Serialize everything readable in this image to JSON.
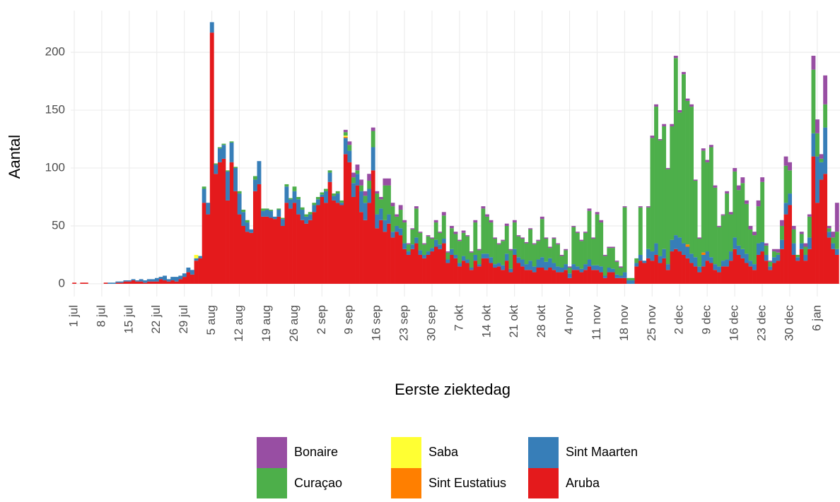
{
  "chart_data": {
    "type": "stacked_bar",
    "x_label": "Eerste ziektedag",
    "y_label": "Aantal",
    "ylim": [
      -11,
      236
    ],
    "yticks": [
      0,
      50,
      100,
      150,
      200
    ],
    "grid": true,
    "legend_position": "bottom",
    "categories": [
      "1 jul",
      null,
      null,
      null,
      null,
      null,
      null,
      "8 jul",
      null,
      null,
      null,
      null,
      null,
      null,
      "15 jul",
      null,
      null,
      null,
      null,
      null,
      null,
      "22 jul",
      null,
      null,
      null,
      null,
      null,
      null,
      "29 jul",
      null,
      null,
      null,
      null,
      null,
      null,
      "5 aug",
      null,
      null,
      null,
      null,
      null,
      null,
      "12 aug",
      null,
      null,
      null,
      null,
      null,
      null,
      "19 aug",
      null,
      null,
      null,
      null,
      null,
      null,
      "26 aug",
      null,
      null,
      null,
      null,
      null,
      null,
      "2 sep",
      null,
      null,
      null,
      null,
      null,
      null,
      "9 sep",
      null,
      null,
      null,
      null,
      null,
      null,
      "16 sep",
      null,
      null,
      null,
      null,
      null,
      null,
      "23 sep",
      null,
      null,
      null,
      null,
      null,
      null,
      "30 sep",
      null,
      null,
      null,
      null,
      null,
      null,
      "7 okt",
      null,
      null,
      null,
      null,
      null,
      null,
      "14 okt",
      null,
      null,
      null,
      null,
      null,
      null,
      "21 okt",
      null,
      null,
      null,
      null,
      null,
      null,
      "28 okt",
      null,
      null,
      null,
      null,
      null,
      null,
      "4 nov",
      null,
      null,
      null,
      null,
      null,
      null,
      "11 nov",
      null,
      null,
      null,
      null,
      null,
      null,
      "18 nov",
      null,
      null,
      null,
      null,
      null,
      null,
      "25 nov",
      null,
      null,
      null,
      null,
      null,
      null,
      "2 dec",
      null,
      null,
      null,
      null,
      null,
      null,
      "9 dec",
      null,
      null,
      null,
      null,
      null,
      null,
      "16 dec",
      null,
      null,
      null,
      null,
      null,
      null,
      "23 dec",
      null,
      null,
      null,
      null,
      null,
      null,
      "30 dec",
      null,
      null,
      null,
      null,
      null,
      null,
      "6 jan",
      null,
      null,
      null,
      null,
      null
    ],
    "series": [
      {
        "name": "Bonaire",
        "color": "#984EA3",
        "values": [
          0,
          0,
          0,
          0,
          0,
          0,
          0,
          0,
          0,
          0,
          0,
          0,
          0,
          0,
          0,
          0,
          0,
          0,
          0,
          0,
          0,
          0,
          0,
          0,
          0,
          0,
          0,
          0,
          0,
          0,
          0,
          0,
          0,
          0,
          0,
          0,
          0,
          0,
          0,
          0,
          0,
          0,
          0,
          0,
          0,
          0,
          0,
          0,
          0,
          0,
          0,
          0,
          0,
          0,
          0,
          0,
          0,
          0,
          0,
          0,
          0,
          0,
          0,
          0,
          0,
          0,
          0,
          0,
          0,
          2,
          3,
          4,
          5,
          5,
          4,
          6,
          3,
          2,
          2,
          6,
          6,
          3,
          2,
          4,
          2,
          1,
          1,
          2,
          1,
          1,
          1,
          1,
          2,
          1,
          3,
          1,
          2,
          2,
          1,
          2,
          1,
          1,
          2,
          1,
          2,
          2,
          2,
          1,
          1,
          1,
          2,
          1,
          2,
          1,
          1,
          1,
          1,
          1,
          1,
          2,
          1,
          1,
          1,
          1,
          1,
          1,
          1,
          1,
          1,
          1,
          1,
          2,
          1,
          2,
          2,
          1,
          1,
          1,
          1,
          1,
          1,
          0,
          0,
          0,
          1,
          0,
          1,
          2,
          2,
          1,
          2,
          1,
          2,
          2,
          2,
          2,
          2,
          2,
          1,
          1,
          2,
          2,
          2,
          2,
          1,
          1,
          2,
          2,
          3,
          4,
          5,
          3,
          3,
          3,
          5,
          4,
          2,
          1,
          2,
          3,
          5,
          8,
          7,
          3,
          0,
          2,
          3,
          2,
          12,
          12,
          4,
          25,
          2,
          5,
          25
        ]
      },
      {
        "name": "Curaçao",
        "color": "#4DAF4A",
        "values": [
          0,
          0,
          0,
          0,
          0,
          0,
          0,
          0,
          0,
          0,
          0,
          0,
          0,
          0,
          0,
          0,
          0,
          0,
          0,
          0,
          0,
          0,
          0,
          0,
          0,
          0,
          0,
          0,
          0,
          0,
          0,
          0,
          0,
          2,
          0,
          0,
          1,
          1,
          1,
          1,
          1,
          1,
          2,
          2,
          2,
          0,
          3,
          0,
          2,
          1,
          1,
          0,
          1,
          1,
          2,
          1,
          4,
          2,
          2,
          2,
          2,
          2,
          2,
          2,
          2,
          2,
          2,
          2,
          2,
          3,
          5,
          5,
          3,
          5,
          6,
          7,
          14,
          18,
          8,
          30,
          25,
          22,
          8,
          16,
          18,
          6,
          13,
          25,
          15,
          9,
          13,
          8,
          15,
          10,
          20,
          6,
          18,
          18,
          19,
          20,
          20,
          13,
          28,
          12,
          39,
          32,
          30,
          22,
          16,
          21,
          24,
          16,
          23,
          18,
          18,
          18,
          27,
          19,
          16,
          33,
          20,
          9,
          21,
          19,
          10,
          12,
          5,
          32,
          29,
          24,
          27,
          42,
          23,
          44,
          38,
          17,
          17,
          18,
          11,
          7,
          56,
          2,
          2,
          4,
          41,
          0,
          36,
          98,
          118,
          100,
          106,
          82,
          98,
          153,
          108,
          146,
          124,
          127,
          66,
          24,
          88,
          77,
          95,
          66,
          34,
          39,
          57,
          32,
          57,
          48,
          57,
          43,
          27,
          25,
          32,
          52,
          8,
          4,
          5,
          2,
          12,
          32,
          20,
          12,
          2,
          8,
          7,
          18,
          55,
          20,
          3,
          20,
          3,
          5,
          15
        ]
      },
      {
        "name": "Saba",
        "color": "#FFFF33",
        "values": [
          0,
          0,
          0,
          0,
          0,
          0,
          0,
          0,
          0,
          0,
          0,
          0,
          0,
          0,
          0,
          0,
          0,
          0,
          0,
          0,
          0,
          0,
          0,
          0,
          0,
          0,
          0,
          0,
          0,
          0,
          0,
          3,
          0,
          0,
          0,
          0,
          0,
          0,
          0,
          0,
          0,
          0,
          0,
          0,
          0,
          0,
          0,
          0,
          0,
          0,
          0,
          0,
          0,
          0,
          0,
          0,
          0,
          0,
          0,
          0,
          0,
          0,
          0,
          0,
          0,
          0,
          0,
          0,
          0,
          1,
          0,
          0,
          0,
          0,
          0,
          0,
          0,
          0,
          0,
          0,
          0,
          0,
          0,
          0,
          0,
          0,
          0,
          0,
          0,
          0,
          0,
          0,
          0,
          0,
          0,
          0,
          0,
          0,
          0,
          0,
          0,
          0,
          0,
          0,
          0,
          0,
          0,
          0,
          0,
          0,
          0,
          0,
          0,
          0,
          0,
          0,
          0,
          0,
          0,
          0,
          0,
          0,
          0,
          0,
          0,
          0,
          0,
          0,
          0,
          0,
          0,
          0,
          0,
          0,
          0,
          0,
          0,
          0,
          0,
          0,
          0,
          0,
          0,
          0,
          0,
          0,
          0,
          0,
          0,
          0,
          0,
          0,
          0,
          0,
          0,
          0,
          0,
          0,
          0,
          0,
          0,
          0,
          0,
          0,
          0,
          0,
          0,
          0,
          0,
          0,
          0,
          0,
          0,
          0,
          0,
          0,
          0,
          0,
          0,
          0,
          0,
          0,
          0,
          0,
          0,
          0,
          0,
          0,
          0,
          0,
          0,
          0,
          0,
          0,
          0
        ]
      },
      {
        "name": "Sint Eustatius",
        "color": "#FF7F00",
        "values": [
          0,
          0,
          0,
          0,
          0,
          0,
          0,
          0,
          0,
          0,
          0,
          0,
          0,
          0,
          0,
          0,
          0,
          0,
          0,
          0,
          0,
          0,
          0,
          0,
          0,
          0,
          0,
          0,
          0,
          0,
          0,
          0,
          0,
          0,
          0,
          0,
          0,
          0,
          0,
          0,
          0,
          0,
          0,
          0,
          0,
          0,
          0,
          0,
          0,
          0,
          0,
          0,
          0,
          0,
          0,
          0,
          0,
          0,
          0,
          0,
          0,
          0,
          0,
          0,
          0,
          0,
          0,
          0,
          0,
          1,
          0,
          0,
          0,
          0,
          0,
          0,
          0,
          0,
          0,
          0,
          0,
          0,
          0,
          0,
          0,
          0,
          0,
          0,
          0,
          0,
          0,
          0,
          0,
          0,
          0,
          0,
          0,
          0,
          0,
          0,
          0,
          0,
          0,
          0,
          0,
          0,
          0,
          0,
          0,
          0,
          0,
          0,
          0,
          0,
          0,
          0,
          0,
          0,
          0,
          0,
          0,
          0,
          0,
          0,
          0,
          0,
          0,
          0,
          0,
          0,
          0,
          0,
          0,
          0,
          0,
          0,
          0,
          0,
          0,
          0,
          0,
          0,
          0,
          0,
          0,
          0,
          0,
          0,
          0,
          0,
          0,
          0,
          0,
          0,
          0,
          0,
          2,
          0,
          0,
          0,
          2,
          0,
          0,
          0,
          0,
          0,
          0,
          0,
          0,
          0,
          0,
          0,
          0,
          0,
          0,
          0,
          0,
          0,
          0,
          0,
          0,
          0,
          0,
          0,
          0,
          0,
          0,
          0,
          0,
          0,
          0,
          0,
          0,
          0,
          0
        ]
      },
      {
        "name": "Sint Maarten",
        "color": "#377EB8",
        "values": [
          0,
          0,
          0,
          0,
          0,
          0,
          0,
          0,
          0,
          1,
          1,
          1,
          1,
          1,
          1,
          1,
          1,
          2,
          2,
          2,
          2,
          3,
          2,
          4,
          2,
          3,
          4,
          3,
          3,
          4,
          4,
          2,
          2,
          12,
          10,
          9,
          8,
          12,
          12,
          25,
          17,
          20,
          18,
          12,
          8,
          3,
          10,
          20,
          5,
          6,
          6,
          2,
          6,
          6,
          14,
          8,
          10,
          13,
          9,
          6,
          5,
          6,
          5,
          2,
          10,
          8,
          4,
          8,
          2,
          14,
          10,
          12,
          10,
          18,
          15,
          12,
          20,
          12,
          10,
          10,
          8,
          5,
          5,
          6,
          5,
          3,
          4,
          5,
          4,
          3,
          3,
          3,
          6,
          4,
          4,
          3,
          5,
          3,
          3,
          4,
          3,
          2,
          5,
          2,
          4,
          4,
          5,
          3,
          3,
          4,
          6,
          3,
          5,
          5,
          6,
          5,
          8,
          5,
          7,
          9,
          7,
          8,
          6,
          5,
          4,
          5,
          4,
          5,
          3,
          3,
          5,
          6,
          4,
          4,
          5,
          2,
          4,
          3,
          3,
          2,
          5,
          3,
          3,
          3,
          5,
          2,
          8,
          8,
          10,
          6,
          8,
          5,
          10,
          12,
          12,
          10,
          10,
          8,
          8,
          5,
          10,
          8,
          5,
          5,
          5,
          5,
          6,
          8,
          10,
          8,
          8,
          8,
          5,
          5,
          10,
          8,
          5,
          3,
          5,
          5,
          8,
          10,
          10,
          10,
          3,
          5,
          5,
          10,
          20,
          40,
          15,
          40,
          5,
          5,
          5
        ]
      },
      {
        "name": "Aruba",
        "color": "#E41A1C",
        "values": [
          1,
          0,
          1,
          1,
          0,
          0,
          0,
          0,
          1,
          0,
          0,
          1,
          1,
          2,
          2,
          3,
          2,
          2,
          1,
          2,
          2,
          2,
          4,
          3,
          2,
          3,
          2,
          4,
          6,
          10,
          8,
          20,
          22,
          70,
          60,
          217,
          95,
          105,
          108,
          72,
          105,
          80,
          60,
          50,
          45,
          44,
          80,
          86,
          58,
          58,
          57,
          56,
          58,
          50,
          70,
          65,
          70,
          60,
          55,
          52,
          55,
          62,
          68,
          75,
          70,
          88,
          72,
          70,
          68,
          112,
          105,
          75,
          85,
          62,
          55,
          70,
          98,
          48,
          55,
          45,
          52,
          40,
          45,
          42,
          30,
          25,
          30,
          35,
          25,
          22,
          25,
          28,
          32,
          30,
          35,
          18,
          25,
          22,
          15,
          20,
          18,
          12,
          20,
          15,
          22,
          22,
          18,
          14,
          15,
          12,
          20,
          10,
          25,
          18,
          15,
          12,
          12,
          10,
          14,
          14,
          12,
          14,
          12,
          10,
          10,
          12,
          5,
          12,
          12,
          10,
          12,
          15,
          12,
          12,
          10,
          5,
          10,
          10,
          5,
          5,
          5,
          0,
          0,
          15,
          20,
          18,
          22,
          20,
          25,
          18,
          22,
          12,
          28,
          30,
          28,
          25,
          22,
          18,
          15,
          10,
          15,
          20,
          18,
          12,
          10,
          15,
          15,
          20,
          30,
          25,
          22,
          18,
          15,
          12,
          25,
          28,
          20,
          12,
          18,
          20,
          30,
          60,
          68,
          25,
          20,
          30,
          20,
          30,
          110,
          70,
          90,
          95,
          40,
          30,
          25
        ]
      }
    ]
  }
}
